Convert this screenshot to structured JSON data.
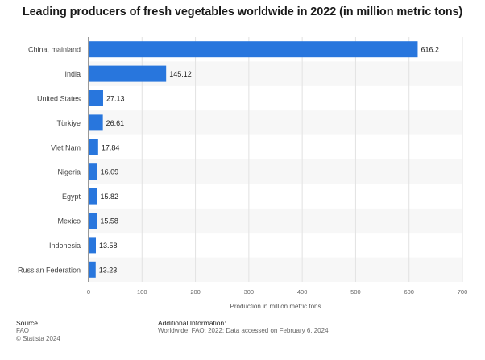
{
  "chart_data": {
    "type": "bar",
    "orientation": "horizontal",
    "title": "Leading producers of fresh vegetables worldwide in 2022 (in million metric tons)",
    "categories": [
      "China, mainland",
      "India",
      "United States",
      "Türkiye",
      "Viet Nam",
      "Nigeria",
      "Egypt",
      "Mexico",
      "Indonesia",
      "Russian Federation"
    ],
    "values": [
      616.2,
      145.12,
      27.13,
      26.61,
      17.84,
      16.09,
      15.82,
      15.58,
      13.58,
      13.23
    ],
    "value_labels": [
      "616.2",
      "145.12",
      "27.13",
      "26.61",
      "17.84",
      "16.09",
      "15.82",
      "15.58",
      "13.58",
      "13.23"
    ],
    "xlabel": "Production in million metric tons",
    "ylabel": "",
    "xlim": [
      0,
      700
    ],
    "xticks": [
      0,
      100,
      200,
      300,
      400,
      500,
      600,
      700
    ],
    "grid": true,
    "bar_color": "#2876dd"
  },
  "footer": {
    "source_heading": "Source",
    "source_name": "FAO",
    "copyright": "© Statista 2024",
    "info_heading": "Additional Information:",
    "info_text": "Worldwide; FAO; 2022; Data accessed on February 6, 2024"
  }
}
